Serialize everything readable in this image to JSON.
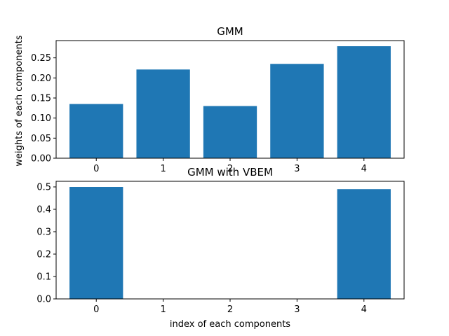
{
  "chart_data": [
    {
      "type": "bar",
      "title": "GMM",
      "xlabel": "",
      "ylabel": "weights of each components",
      "categories": [
        "0",
        "1",
        "2",
        "3",
        "4"
      ],
      "values": [
        0.135,
        0.221,
        0.13,
        0.235,
        0.279
      ],
      "ylim": [
        0,
        0.293
      ],
      "yticks": [
        "0.00",
        "0.05",
        "0.10",
        "0.15",
        "0.20",
        "0.25"
      ],
      "ytick_values": [
        0,
        0.05,
        0.1,
        0.15,
        0.2,
        0.25
      ],
      "grid": false,
      "bar_color": "#1f77b4"
    },
    {
      "type": "bar",
      "title": "GMM with VBEM",
      "xlabel": "index of each components",
      "ylabel": "",
      "categories": [
        "0",
        "1",
        "2",
        "3",
        "4"
      ],
      "values": [
        0.5,
        0.0,
        0.0,
        0.0,
        0.49
      ],
      "ylim": [
        0,
        0.525
      ],
      "yticks": [
        "0.0",
        "0.1",
        "0.2",
        "0.3",
        "0.4",
        "0.5"
      ],
      "ytick_values": [
        0,
        0.1,
        0.2,
        0.3,
        0.4,
        0.5
      ],
      "grid": false,
      "bar_color": "#1f77b4"
    }
  ]
}
